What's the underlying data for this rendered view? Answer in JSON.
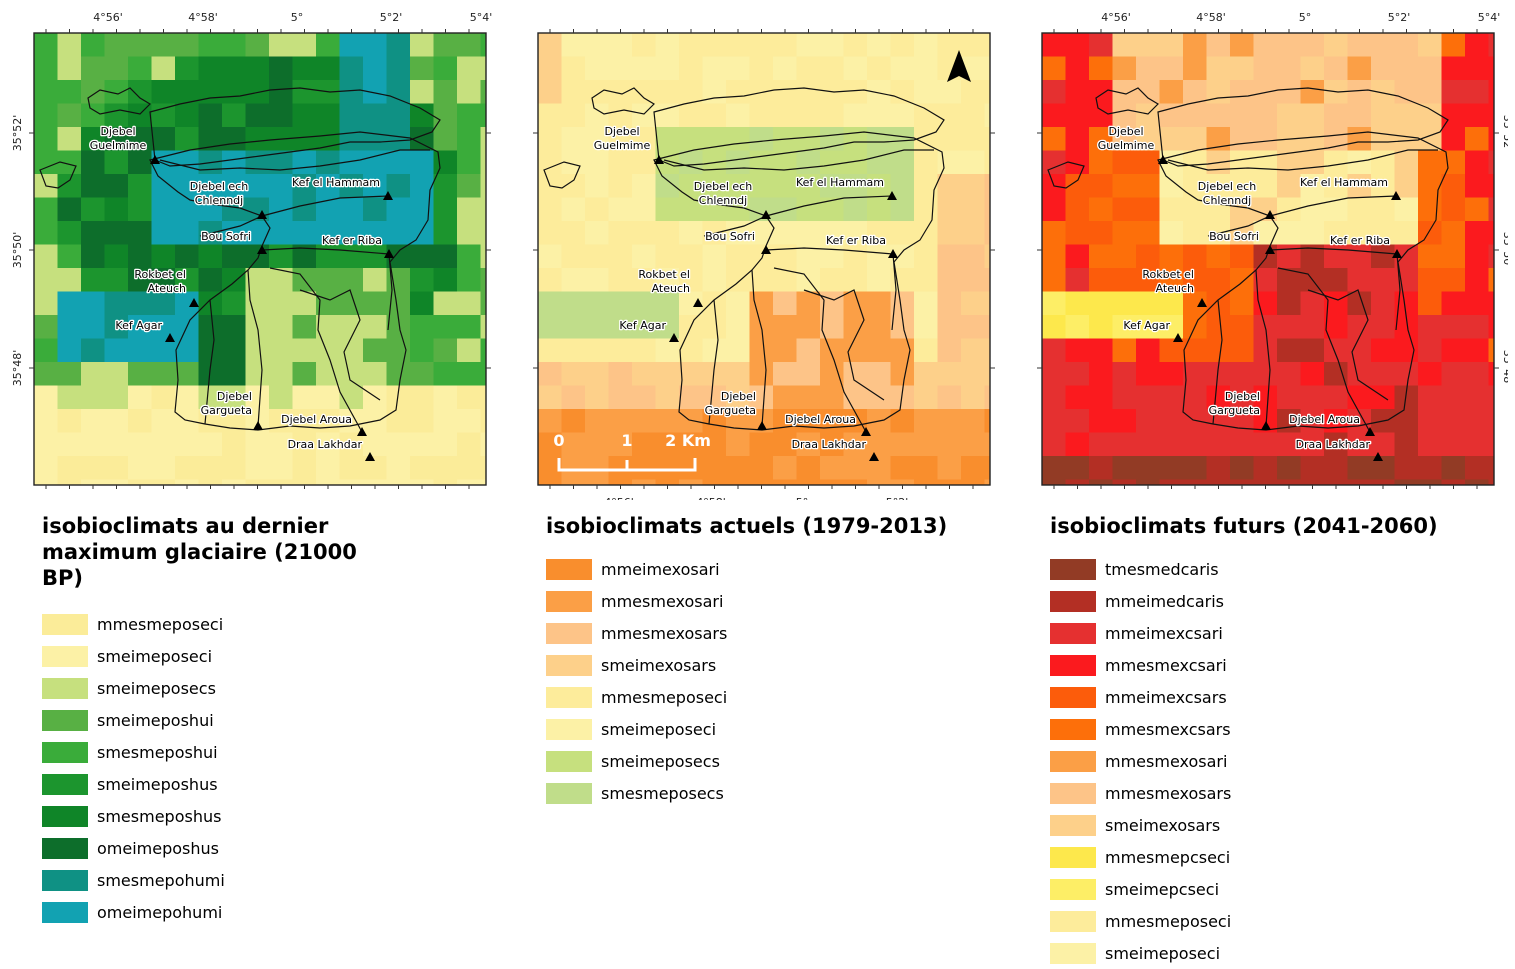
{
  "top_ticks": [
    "4°56'",
    "4°58'",
    "5°",
    "5°2'",
    "5°4'"
  ],
  "left_ticks": [
    "35°52'",
    "35°50'",
    "35°48'"
  ],
  "bottom_ticks": [
    "4°56'",
    "4°58'",
    "5°",
    "5°2'"
  ],
  "sites": [
    {
      "lines": [
        "Djebel",
        "Guelmime"
      ]
    },
    {
      "lines": [
        "Djebel ech",
        "Chlenndj"
      ]
    },
    {
      "lines": [
        "Kef el Hammam"
      ]
    },
    {
      "lines": [
        "Bou Sofri"
      ]
    },
    {
      "lines": [
        "Kef er Riba"
      ]
    },
    {
      "lines": [
        "Rokbet el",
        "Ateuch"
      ]
    },
    {
      "lines": [
        "Kef Agar"
      ]
    },
    {
      "lines": [
        "Djebel",
        "Gargueta"
      ]
    },
    {
      "lines": [
        "Djebel Aroua"
      ]
    },
    {
      "lines": [
        "Draa Lakhdar"
      ]
    }
  ],
  "scale_bar": {
    "labels": [
      "0",
      "1",
      "2 Km"
    ]
  },
  "panels": [
    {
      "title": "isobioclimats au dernier maximum glaciaire (21000 BP)",
      "legend": [
        {
          "label": "mmesmeposeci",
          "color": "#fbec99"
        },
        {
          "label": "smeimeposeci",
          "color": "#fcf1a6"
        },
        {
          "label": "smeimeposecs",
          "color": "#c6e07e"
        },
        {
          "label": "smeimeposhui",
          "color": "#58b044"
        },
        {
          "label": "smesmeposhui",
          "color": "#3aac3a"
        },
        {
          "label": "smeimeposhus",
          "color": "#1c952e"
        },
        {
          "label": "smesmeposhus",
          "color": "#0f8528"
        },
        {
          "label": "omeimeposhus",
          "color": "#0d6e2b"
        },
        {
          "label": "smesmepohumi",
          "color": "#0f9184"
        },
        {
          "label": "omeimepohumi",
          "color": "#12a2b2"
        }
      ]
    },
    {
      "title": "isobioclimats actuels (1979-2013)",
      "legend": [
        {
          "label": "mmeimexosari",
          "color": "#f98e2d"
        },
        {
          "label": "mmesmexosari",
          "color": "#fb9f46"
        },
        {
          "label": "mmesmexosars",
          "color": "#fdc488"
        },
        {
          "label": "smeimexosars",
          "color": "#fdd08a"
        },
        {
          "label": "mmesmeposeci",
          "color": "#fdec9b"
        },
        {
          "label": "smeimeposeci",
          "color": "#fcf1a6"
        },
        {
          "label": "smeimeposecs",
          "color": "#c6e07e"
        },
        {
          "label": "smesmeposecs",
          "color": "#c0dd8a"
        }
      ]
    },
    {
      "title": "isobioclimats futurs (2041-2060)",
      "legend": [
        {
          "label": "tmesmedcaris",
          "color": "#923b25"
        },
        {
          "label": "mmeimedcaris",
          "color": "#b32f24"
        },
        {
          "label": "mmeimexcsari",
          "color": "#e53030"
        },
        {
          "label": "mmesmexcsari",
          "color": "#fb1a1e"
        },
        {
          "label": "mmeimexcsars",
          "color": "#fc5c0b"
        },
        {
          "label": "mmesmexcsars",
          "color": "#fd6f0a"
        },
        {
          "label": "mmesmexosari",
          "color": "#fb9f46"
        },
        {
          "label": "mmesmexosars",
          "color": "#fdc488"
        },
        {
          "label": "smeimexosars",
          "color": "#fdd08a"
        },
        {
          "label": "mmesmepcseci",
          "color": "#fde84c"
        },
        {
          "label": "smeimepcseci",
          "color": "#fdee66"
        },
        {
          "label": "mmesmeposeci",
          "color": "#fdec9b"
        },
        {
          "label": "smeimeposeci",
          "color": "#fcf1a6"
        }
      ]
    }
  ]
}
